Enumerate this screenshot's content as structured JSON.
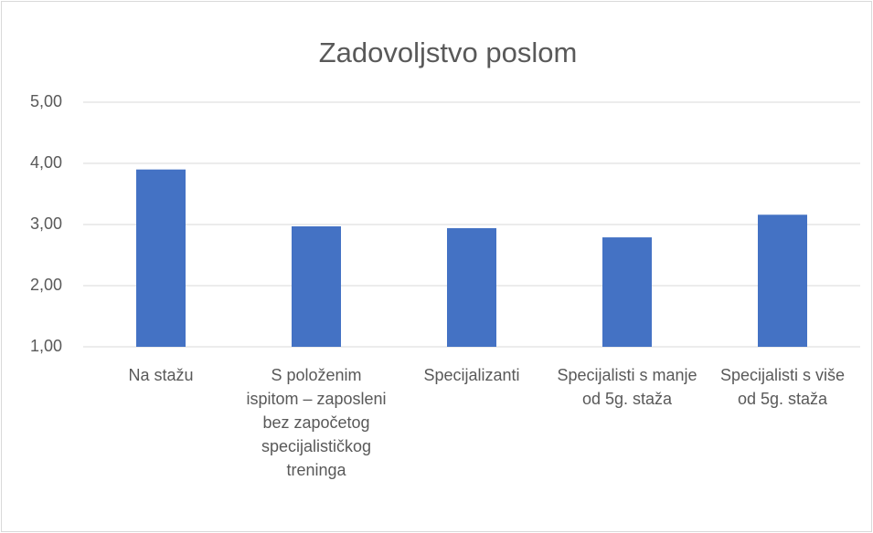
{
  "chart_data": {
    "type": "bar",
    "title": "Zadovoljstvo poslom",
    "categories": [
      "Na stažu",
      "S položenim ispitom – zaposleni bez započetog specijalističkog treninga",
      "Specijalizanti",
      "Specijalisti s manje od 5g. staža",
      "Specijalisti s više od 5g. staža"
    ],
    "values": [
      3.9,
      2.97,
      2.94,
      2.79,
      3.16
    ],
    "color": "#4472c4",
    "ylim": [
      1,
      5
    ],
    "yticks": [
      {
        "value": 1,
        "label": "1,00"
      },
      {
        "value": 2,
        "label": "2,00"
      },
      {
        "value": 3,
        "label": "3,00"
      },
      {
        "value": 4,
        "label": "4,00"
      },
      {
        "value": 5,
        "label": "5,00"
      }
    ],
    "grid": true
  }
}
